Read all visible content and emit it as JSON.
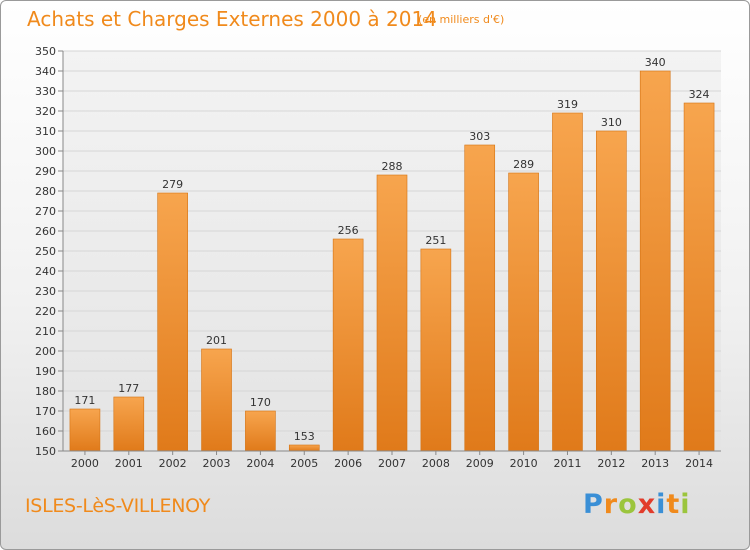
{
  "header": {
    "title": "Achats et Charges Externes 2000 à 2014",
    "unit": "(en milliers d'€)"
  },
  "footer": {
    "city": "ISLES-LèS-VILLENOY",
    "logo": {
      "letters": [
        "P",
        "r",
        "o",
        "x",
        "i",
        "t",
        "i"
      ],
      "colors": [
        "#3a8fd6",
        "#f08a1c",
        "#9bc53d",
        "#e23c2b",
        "#3a8fd6",
        "#f08a1c",
        "#9bc53d"
      ]
    }
  },
  "chart_data": {
    "type": "bar",
    "title": "Achats et Charges Externes 2000 à 2014",
    "subtitle": "(en milliers d'€)",
    "xlabel": "",
    "ylabel": "",
    "categories": [
      "2000",
      "2001",
      "2002",
      "2003",
      "2004",
      "2005",
      "2006",
      "2007",
      "2008",
      "2009",
      "2010",
      "2011",
      "2012",
      "2013",
      "2014"
    ],
    "values": [
      171,
      177,
      279,
      201,
      170,
      153,
      256,
      288,
      251,
      303,
      289,
      319,
      310,
      340,
      324
    ],
    "ylim": [
      150,
      350
    ],
    "yticks": [
      150,
      160,
      170,
      180,
      190,
      200,
      210,
      220,
      230,
      240,
      250,
      260,
      270,
      280,
      290,
      300,
      310,
      320,
      330,
      340,
      350
    ],
    "grid": true,
    "legend": "none",
    "colors": {
      "bar_top": "#f7a54e",
      "bar_bottom": "#e07a1a",
      "grid": "#d6d6d6",
      "axis": "#888888"
    }
  }
}
